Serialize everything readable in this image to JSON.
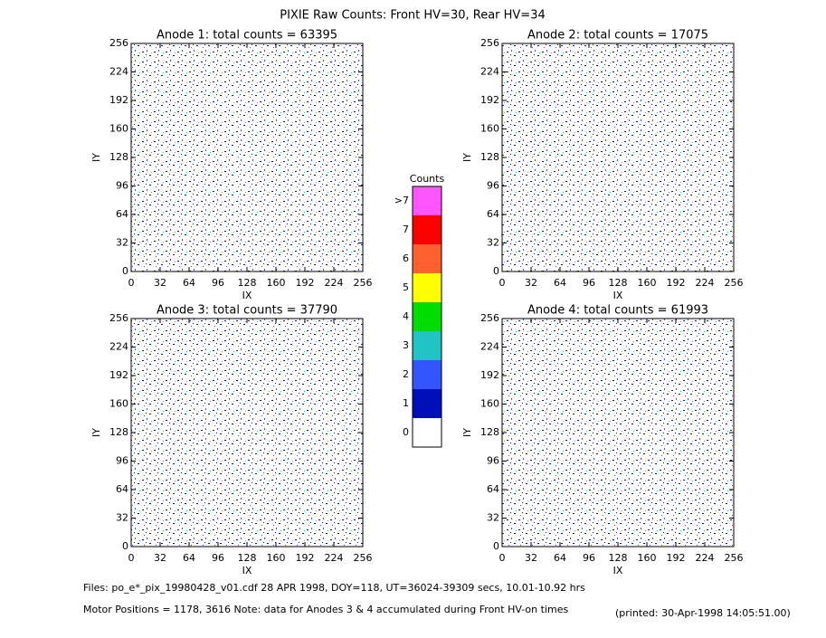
{
  "title": "PIXIE Raw Counts:  Front HV=30, Rear HV=34",
  "chart_data": [
    {
      "type": "heatmap",
      "title": "Anode 1: total counts = 63395",
      "xlabel": "IX",
      "ylabel": "IY",
      "xlim": [
        0,
        256
      ],
      "ylim": [
        0,
        256
      ],
      "xticks": [
        0,
        32,
        64,
        96,
        128,
        160,
        192,
        224,
        256
      ],
      "yticks": [
        0,
        32,
        64,
        96,
        128,
        160,
        192,
        224,
        256
      ]
    },
    {
      "type": "heatmap",
      "title": "Anode 2: total counts = 17075",
      "xlabel": "IX",
      "ylabel": "IY",
      "xlim": [
        0,
        256
      ],
      "ylim": [
        0,
        256
      ],
      "xticks": [
        0,
        32,
        64,
        96,
        128,
        160,
        192,
        224,
        256
      ],
      "yticks": [
        0,
        32,
        64,
        96,
        128,
        160,
        192,
        224,
        256
      ]
    },
    {
      "type": "heatmap",
      "title": "Anode 3: total counts = 37790",
      "xlabel": "IX",
      "ylabel": "IY",
      "xlim": [
        0,
        256
      ],
      "ylim": [
        0,
        256
      ],
      "xticks": [
        0,
        32,
        64,
        96,
        128,
        160,
        192,
        224,
        256
      ],
      "yticks": [
        0,
        32,
        64,
        96,
        128,
        160,
        192,
        224,
        256
      ]
    },
    {
      "type": "heatmap",
      "title": "Anode 4: total counts = 61993",
      "xlabel": "IX",
      "ylabel": "IY",
      "xlim": [
        0,
        256
      ],
      "ylim": [
        0,
        256
      ],
      "xticks": [
        0,
        32,
        64,
        96,
        128,
        160,
        192,
        224,
        256
      ],
      "yticks": [
        0,
        32,
        64,
        96,
        128,
        160,
        192,
        224,
        256
      ]
    }
  ],
  "colorbar": {
    "title": "Counts",
    "labels": [
      ">7",
      "7",
      "6",
      "5",
      "4",
      "3",
      "2",
      "1",
      "0"
    ],
    "colors": [
      "#ff55ff",
      "#ff0000",
      "#ff6030",
      "#ffff00",
      "#00dd00",
      "#20c4c4",
      "#3355ff",
      "#0010b8",
      "#ffffff"
    ]
  },
  "footer": {
    "files": "Files: po_e*_pix_19980428_v01.cdf    28 APR 1998, DOY=118, UT=36024-39309 secs, 10.01-10.92 hrs",
    "motor": "Motor Positions = 1178, 3616   Note: data for Anodes 3 & 4 accumulated during Front HV-on times",
    "printed": "(printed: 30-Apr-1998 14:05:51.00)"
  }
}
